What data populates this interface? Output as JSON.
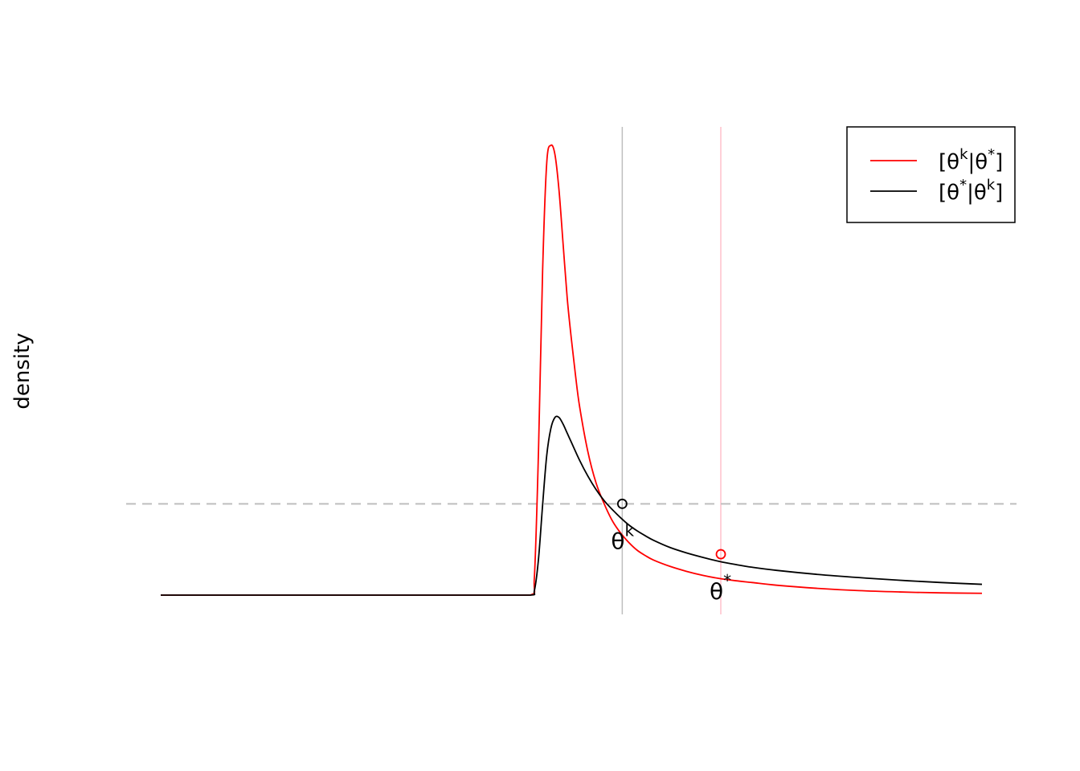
{
  "chart_data": {
    "type": "line",
    "title": "",
    "xlabel": "",
    "ylabel": "density",
    "axes_shown": false,
    "xlim": [
      0,
      1
    ],
    "ylim": [
      0,
      1
    ],
    "series": [
      {
        "name": "[θk|θ*]",
        "color": "#ff0000",
        "x": [
          0.0,
          0.1,
          0.2,
          0.3,
          0.4,
          0.45,
          0.455,
          0.46,
          0.465,
          0.47,
          0.475,
          0.48,
          0.485,
          0.49,
          0.495,
          0.5,
          0.505,
          0.51,
          0.52,
          0.53,
          0.54,
          0.55,
          0.56,
          0.57,
          0.58,
          0.59,
          0.6,
          0.62,
          0.64,
          0.66,
          0.68,
          0.7,
          0.72,
          0.75,
          0.8,
          0.85,
          0.9,
          0.95,
          1.0
        ],
        "y": [
          0.0,
          0.0,
          0.0,
          0.0,
          0.0,
          0.0,
          0.04,
          0.32,
          0.72,
          0.96,
          1.0,
          0.98,
          0.9,
          0.78,
          0.66,
          0.57,
          0.49,
          0.42,
          0.32,
          0.25,
          0.203,
          0.165,
          0.138,
          0.117,
          0.1,
          0.088,
          0.078,
          0.064,
          0.053,
          0.044,
          0.037,
          0.032,
          0.028,
          0.022,
          0.015,
          0.01,
          0.007,
          0.005,
          0.004
        ]
      },
      {
        "name": "[θ*|θk]",
        "color": "#000000",
        "x": [
          0.0,
          0.1,
          0.2,
          0.3,
          0.4,
          0.45,
          0.455,
          0.46,
          0.465,
          0.47,
          0.475,
          0.48,
          0.485,
          0.49,
          0.495,
          0.5,
          0.51,
          0.52,
          0.53,
          0.54,
          0.55,
          0.56,
          0.57,
          0.58,
          0.59,
          0.6,
          0.62,
          0.64,
          0.66,
          0.68,
          0.7,
          0.72,
          0.75,
          0.8,
          0.85,
          0.9,
          0.95,
          1.0
        ],
        "y": [
          0.0,
          0.0,
          0.0,
          0.0,
          0.0,
          0.0,
          0.01,
          0.08,
          0.2,
          0.31,
          0.37,
          0.395,
          0.395,
          0.38,
          0.36,
          0.34,
          0.3,
          0.265,
          0.235,
          0.21,
          0.19,
          0.172,
          0.156,
          0.143,
          0.132,
          0.122,
          0.106,
          0.094,
          0.084,
          0.075,
          0.068,
          0.062,
          0.055,
          0.046,
          0.039,
          0.033,
          0.028,
          0.024
        ]
      }
    ],
    "horizontal_line": {
      "y": 0.203,
      "style": "dashed",
      "color": "#bebebe"
    },
    "vertical_lines": [
      {
        "x": 0.562,
        "color": "#bebebe"
      },
      {
        "x": 0.682,
        "color": "#ffc0cb"
      }
    ],
    "points": [
      {
        "x": 0.562,
        "y": 0.203,
        "color": "#000000"
      },
      {
        "x": 0.682,
        "y": 0.091,
        "color": "#ff0000"
      }
    ],
    "point_labels": [
      {
        "x": 0.562,
        "y": 0.203,
        "base": "θ",
        "sup": "k"
      },
      {
        "x": 0.682,
        "y": 0.091,
        "base": "θ",
        "sup": "*"
      }
    ],
    "legend": {
      "placement": "top-right",
      "entries": [
        {
          "pre": "[θ",
          "sup1": "k",
          "mid": "|θ",
          "sup2": "*",
          "post": "]",
          "color": "#ff0000"
        },
        {
          "pre": "[θ",
          "sup1": "*",
          "mid": "|θ",
          "sup2": "k",
          "post": "]",
          "color": "#000000"
        }
      ]
    }
  }
}
